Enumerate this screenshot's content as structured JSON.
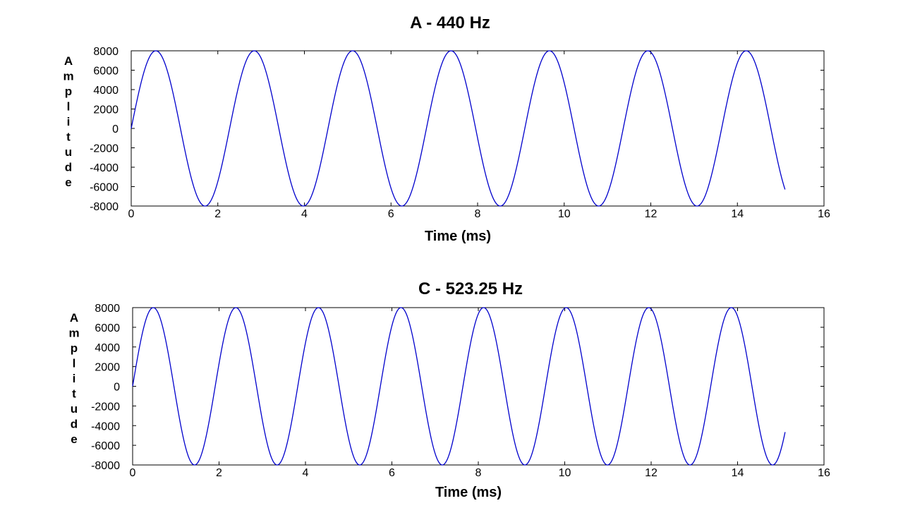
{
  "chart_data": [
    {
      "type": "line",
      "title": "A - 440 Hz",
      "xlabel": "Time (ms)",
      "ylabel": "Amplitude",
      "xlim": [
        0,
        16
      ],
      "ylim": [
        -8000,
        8000
      ],
      "xticks": [
        0,
        2,
        4,
        6,
        8,
        10,
        12,
        14,
        16
      ],
      "yticks": [
        8000,
        6000,
        4000,
        2000,
        0,
        -2000,
        -4000,
        -6000,
        -8000
      ],
      "grid": false,
      "series": [
        {
          "frequency_hz": 440,
          "amplitude": 8000,
          "x_start": 0,
          "x_end": 15.1,
          "color": "#0000cc"
        }
      ]
    },
    {
      "type": "line",
      "title": "C - 523.25 Hz",
      "xlabel": "Time (ms)",
      "ylabel": "Amplitude",
      "xlim": [
        0,
        16
      ],
      "ylim": [
        -8000,
        8000
      ],
      "xticks": [
        0,
        2,
        4,
        6,
        8,
        10,
        12,
        14,
        16
      ],
      "yticks": [
        8000,
        6000,
        4000,
        2000,
        0,
        -2000,
        -4000,
        -6000,
        -8000
      ],
      "grid": false,
      "series": [
        {
          "frequency_hz": 523.25,
          "amplitude": 8000,
          "x_start": 0,
          "x_end": 15.1,
          "color": "#0000cc"
        }
      ]
    }
  ]
}
